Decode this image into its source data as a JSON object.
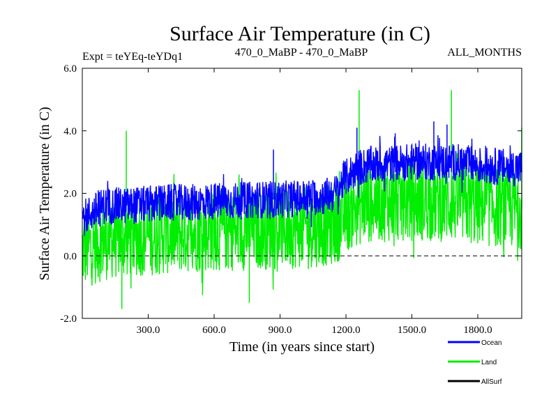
{
  "chart_data": {
    "type": "line",
    "title": "Surface Air Temperature (in C)",
    "subtitle_left": "Expt = teYEq-teYDq1",
    "subtitle_center": "470_0_MaBP - 470_0_MaBP",
    "subtitle_right": "ALL_MONTHS",
    "xlabel": "Time (in years since start)",
    "ylabel": "Surface Air Temperature (in C)",
    "xlim": [
      0,
      2000
    ],
    "ylim": [
      -2.0,
      6.0
    ],
    "x_ticks": [
      300,
      600,
      900,
      1200,
      1500,
      1800
    ],
    "x_tick_labels": [
      "300.0",
      "600.0",
      "900.0",
      "1200.0",
      "1500.0",
      "1800.0"
    ],
    "y_ticks": [
      -2.0,
      0.0,
      2.0,
      4.0,
      6.0
    ],
    "y_tick_labels": [
      "-2.0",
      "0.0",
      "2.0",
      "4.0",
      "6.0"
    ],
    "reference_line": {
      "y": 0.0,
      "style": "dashed"
    },
    "series": [
      {
        "name": "Ocean",
        "color": "#0000ff",
        "x": [
          0,
          100,
          200,
          300,
          400,
          500,
          600,
          700,
          800,
          900,
          1000,
          1100,
          1150,
          1200,
          1250,
          1300,
          1400,
          1500,
          1600,
          1700,
          1800,
          1900,
          2000
        ],
        "mean": [
          1.2,
          1.6,
          1.6,
          1.65,
          1.7,
          1.7,
          1.75,
          1.75,
          1.8,
          1.8,
          1.85,
          1.9,
          2.0,
          2.5,
          2.8,
          2.9,
          2.95,
          3.0,
          3.0,
          3.0,
          2.9,
          2.85,
          2.8
        ],
        "spread": [
          0.6,
          0.6,
          0.6,
          0.6,
          0.6,
          0.6,
          0.6,
          0.6,
          0.6,
          0.6,
          0.6,
          0.6,
          0.6,
          0.6,
          0.6,
          0.6,
          0.6,
          0.6,
          0.6,
          0.6,
          0.6,
          0.6,
          0.6
        ],
        "peaks": [
          [
            870,
            3.4
          ],
          [
            1250,
            4.1
          ],
          [
            1600,
            4.3
          ],
          [
            1660,
            4.2
          ]
        ]
      },
      {
        "name": "Land",
        "color": "#00ee00",
        "x": [
          0,
          100,
          200,
          300,
          400,
          500,
          600,
          700,
          800,
          900,
          1000,
          1100,
          1150,
          1200,
          1250,
          1300,
          1400,
          1500,
          1600,
          1700,
          1800,
          1900,
          2000
        ],
        "mean": [
          0.2,
          0.5,
          0.6,
          0.65,
          0.7,
          0.75,
          0.8,
          0.8,
          0.85,
          0.85,
          0.9,
          0.95,
          1.0,
          1.4,
          1.6,
          1.7,
          1.75,
          1.75,
          1.75,
          1.7,
          1.6,
          1.55,
          1.5
        ],
        "spread": [
          1.3,
          1.3,
          1.3,
          1.3,
          1.3,
          1.3,
          1.3,
          1.3,
          1.3,
          1.3,
          1.3,
          1.3,
          1.3,
          1.3,
          1.3,
          1.3,
          1.3,
          1.3,
          1.3,
          1.3,
          1.3,
          1.3,
          1.3
        ],
        "peaks": [
          [
            200,
            4.0
          ],
          [
            1260,
            5.3
          ],
          [
            1680,
            5.3
          ],
          [
            2000,
            4.1
          ],
          [
            180,
            -1.7
          ],
          [
            760,
            -1.5
          ]
        ]
      },
      {
        "name": "AllSurf",
        "color": "#000000",
        "x": [],
        "mean": [],
        "spread": [],
        "peaks": []
      }
    ],
    "legend_position": "bottom-right"
  }
}
